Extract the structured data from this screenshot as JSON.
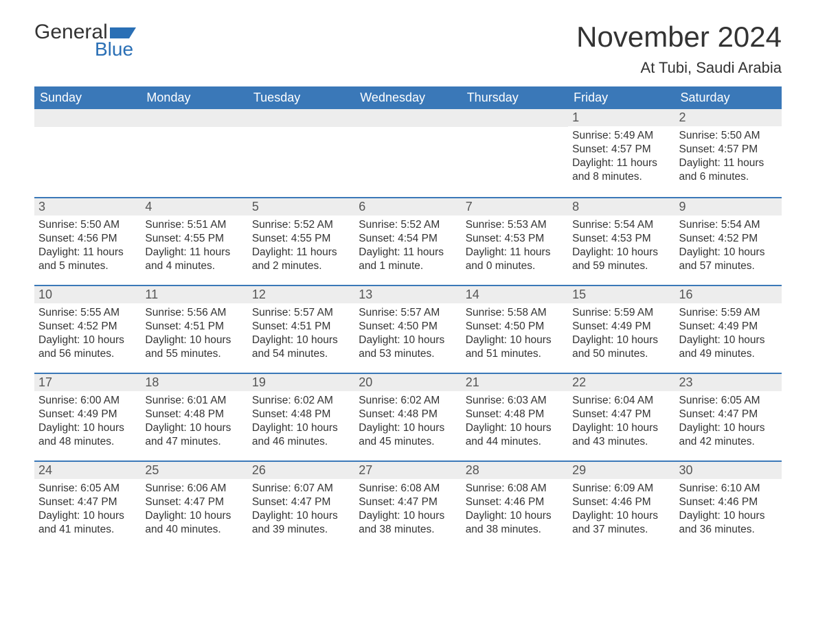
{
  "brand": {
    "word1": "General",
    "word2": "Blue"
  },
  "title": "November 2024",
  "location": "At Tubi, Saudi Arabia",
  "colors": {
    "header_bg": "#3a78b8",
    "header_text": "#ffffff",
    "daynum_bg": "#ededed",
    "row_border": "#3a78b8",
    "brand_accent": "#2a6fb5",
    "body_text": "#333333",
    "background": "#ffffff"
  },
  "typography": {
    "title_fontsize": 42,
    "location_fontsize": 22,
    "dayheader_fontsize": 18,
    "daynum_fontsize": 18,
    "details_fontsize": 15.5
  },
  "day_names": [
    "Sunday",
    "Monday",
    "Tuesday",
    "Wednesday",
    "Thursday",
    "Friday",
    "Saturday"
  ],
  "weeks": [
    [
      null,
      null,
      null,
      null,
      null,
      {
        "n": "1",
        "sunrise": "Sunrise: 5:49 AM",
        "sunset": "Sunset: 4:57 PM",
        "daylight": "Daylight: 11 hours and 8 minutes."
      },
      {
        "n": "2",
        "sunrise": "Sunrise: 5:50 AM",
        "sunset": "Sunset: 4:57 PM",
        "daylight": "Daylight: 11 hours and 6 minutes."
      }
    ],
    [
      {
        "n": "3",
        "sunrise": "Sunrise: 5:50 AM",
        "sunset": "Sunset: 4:56 PM",
        "daylight": "Daylight: 11 hours and 5 minutes."
      },
      {
        "n": "4",
        "sunrise": "Sunrise: 5:51 AM",
        "sunset": "Sunset: 4:55 PM",
        "daylight": "Daylight: 11 hours and 4 minutes."
      },
      {
        "n": "5",
        "sunrise": "Sunrise: 5:52 AM",
        "sunset": "Sunset: 4:55 PM",
        "daylight": "Daylight: 11 hours and 2 minutes."
      },
      {
        "n": "6",
        "sunrise": "Sunrise: 5:52 AM",
        "sunset": "Sunset: 4:54 PM",
        "daylight": "Daylight: 11 hours and 1 minute."
      },
      {
        "n": "7",
        "sunrise": "Sunrise: 5:53 AM",
        "sunset": "Sunset: 4:53 PM",
        "daylight": "Daylight: 11 hours and 0 minutes."
      },
      {
        "n": "8",
        "sunrise": "Sunrise: 5:54 AM",
        "sunset": "Sunset: 4:53 PM",
        "daylight": "Daylight: 10 hours and 59 minutes."
      },
      {
        "n": "9",
        "sunrise": "Sunrise: 5:54 AM",
        "sunset": "Sunset: 4:52 PM",
        "daylight": "Daylight: 10 hours and 57 minutes."
      }
    ],
    [
      {
        "n": "10",
        "sunrise": "Sunrise: 5:55 AM",
        "sunset": "Sunset: 4:52 PM",
        "daylight": "Daylight: 10 hours and 56 minutes."
      },
      {
        "n": "11",
        "sunrise": "Sunrise: 5:56 AM",
        "sunset": "Sunset: 4:51 PM",
        "daylight": "Daylight: 10 hours and 55 minutes."
      },
      {
        "n": "12",
        "sunrise": "Sunrise: 5:57 AM",
        "sunset": "Sunset: 4:51 PM",
        "daylight": "Daylight: 10 hours and 54 minutes."
      },
      {
        "n": "13",
        "sunrise": "Sunrise: 5:57 AM",
        "sunset": "Sunset: 4:50 PM",
        "daylight": "Daylight: 10 hours and 53 minutes."
      },
      {
        "n": "14",
        "sunrise": "Sunrise: 5:58 AM",
        "sunset": "Sunset: 4:50 PM",
        "daylight": "Daylight: 10 hours and 51 minutes."
      },
      {
        "n": "15",
        "sunrise": "Sunrise: 5:59 AM",
        "sunset": "Sunset: 4:49 PM",
        "daylight": "Daylight: 10 hours and 50 minutes."
      },
      {
        "n": "16",
        "sunrise": "Sunrise: 5:59 AM",
        "sunset": "Sunset: 4:49 PM",
        "daylight": "Daylight: 10 hours and 49 minutes."
      }
    ],
    [
      {
        "n": "17",
        "sunrise": "Sunrise: 6:00 AM",
        "sunset": "Sunset: 4:49 PM",
        "daylight": "Daylight: 10 hours and 48 minutes."
      },
      {
        "n": "18",
        "sunrise": "Sunrise: 6:01 AM",
        "sunset": "Sunset: 4:48 PM",
        "daylight": "Daylight: 10 hours and 47 minutes."
      },
      {
        "n": "19",
        "sunrise": "Sunrise: 6:02 AM",
        "sunset": "Sunset: 4:48 PM",
        "daylight": "Daylight: 10 hours and 46 minutes."
      },
      {
        "n": "20",
        "sunrise": "Sunrise: 6:02 AM",
        "sunset": "Sunset: 4:48 PM",
        "daylight": "Daylight: 10 hours and 45 minutes."
      },
      {
        "n": "21",
        "sunrise": "Sunrise: 6:03 AM",
        "sunset": "Sunset: 4:48 PM",
        "daylight": "Daylight: 10 hours and 44 minutes."
      },
      {
        "n": "22",
        "sunrise": "Sunrise: 6:04 AM",
        "sunset": "Sunset: 4:47 PM",
        "daylight": "Daylight: 10 hours and 43 minutes."
      },
      {
        "n": "23",
        "sunrise": "Sunrise: 6:05 AM",
        "sunset": "Sunset: 4:47 PM",
        "daylight": "Daylight: 10 hours and 42 minutes."
      }
    ],
    [
      {
        "n": "24",
        "sunrise": "Sunrise: 6:05 AM",
        "sunset": "Sunset: 4:47 PM",
        "daylight": "Daylight: 10 hours and 41 minutes."
      },
      {
        "n": "25",
        "sunrise": "Sunrise: 6:06 AM",
        "sunset": "Sunset: 4:47 PM",
        "daylight": "Daylight: 10 hours and 40 minutes."
      },
      {
        "n": "26",
        "sunrise": "Sunrise: 6:07 AM",
        "sunset": "Sunset: 4:47 PM",
        "daylight": "Daylight: 10 hours and 39 minutes."
      },
      {
        "n": "27",
        "sunrise": "Sunrise: 6:08 AM",
        "sunset": "Sunset: 4:47 PM",
        "daylight": "Daylight: 10 hours and 38 minutes."
      },
      {
        "n": "28",
        "sunrise": "Sunrise: 6:08 AM",
        "sunset": "Sunset: 4:46 PM",
        "daylight": "Daylight: 10 hours and 38 minutes."
      },
      {
        "n": "29",
        "sunrise": "Sunrise: 6:09 AM",
        "sunset": "Sunset: 4:46 PM",
        "daylight": "Daylight: 10 hours and 37 minutes."
      },
      {
        "n": "30",
        "sunrise": "Sunrise: 6:10 AM",
        "sunset": "Sunset: 4:46 PM",
        "daylight": "Daylight: 10 hours and 36 minutes."
      }
    ]
  ]
}
